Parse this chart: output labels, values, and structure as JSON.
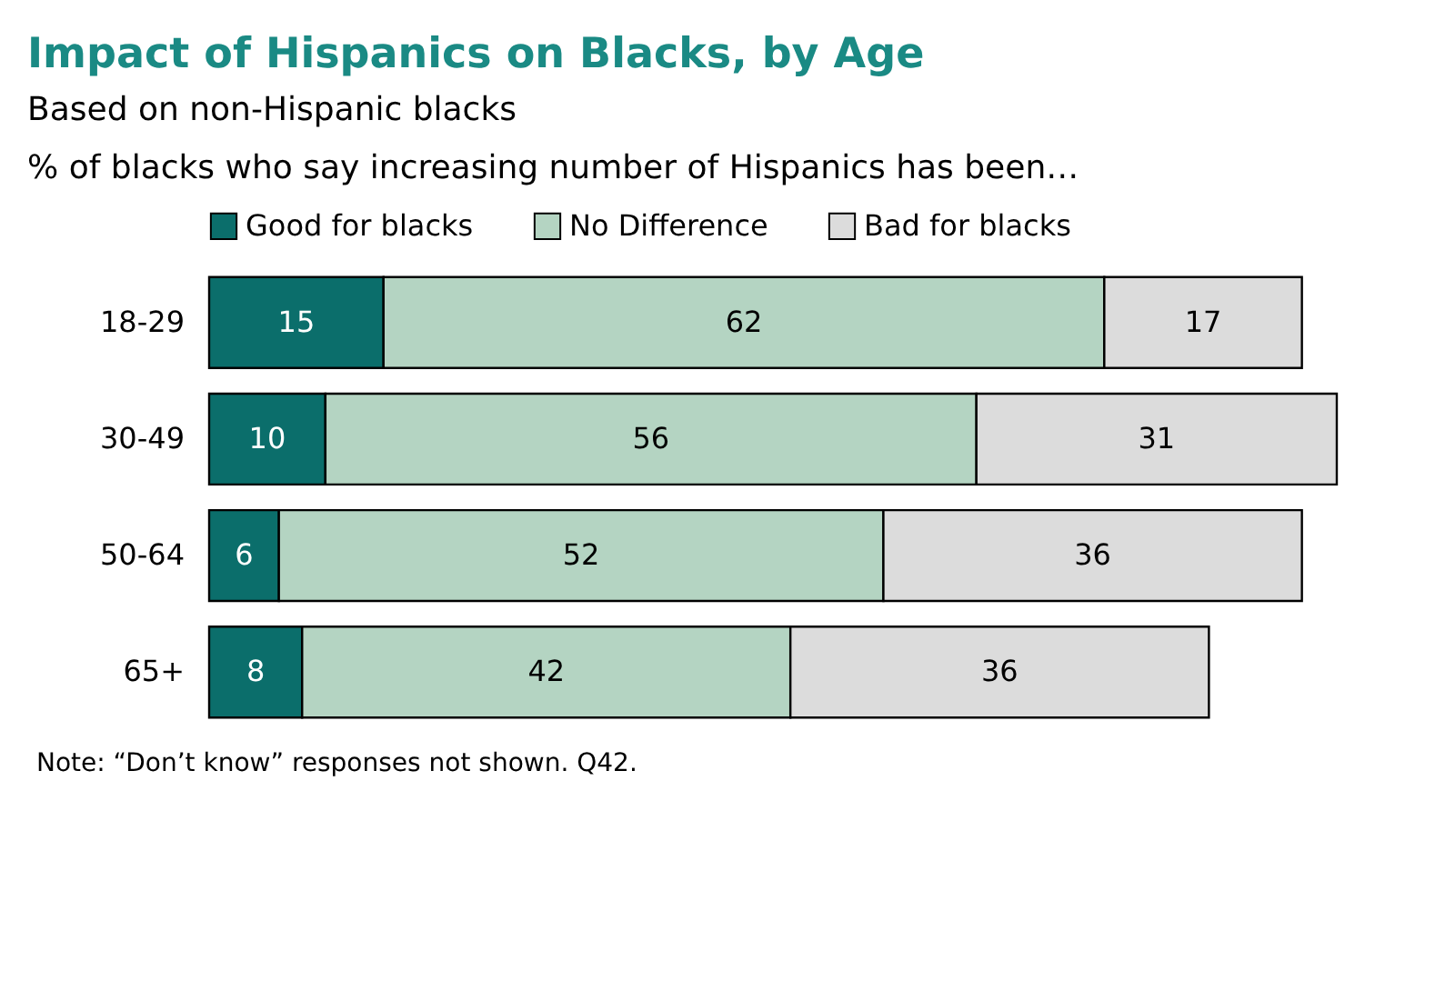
{
  "chart_data": {
    "type": "bar",
    "orientation": "horizontal",
    "stacked": true,
    "title": "Impact of Hispanics on Blacks, by Age",
    "subtitle": "Based on non-Hispanic blacks\n% of blacks who say increasing number of Hispanics has been…",
    "categories": [
      "18-29",
      "30-49",
      "50-64",
      "65+"
    ],
    "series": [
      {
        "name": "Good for blacks",
        "color": "#0b6e6b",
        "values": [
          15,
          10,
          6,
          8
        ]
      },
      {
        "name": "No Difference",
        "color": "#b4d4c2",
        "values": [
          62,
          56,
          52,
          42
        ]
      },
      {
        "name": "Bad for blacks",
        "color": "#dcdcdc",
        "values": [
          17,
          31,
          36,
          36
        ]
      }
    ],
    "data_labels": true,
    "legend": "top",
    "annotations": [
      "Note: “Don’t know” responses not shown. Q42."
    ]
  }
}
